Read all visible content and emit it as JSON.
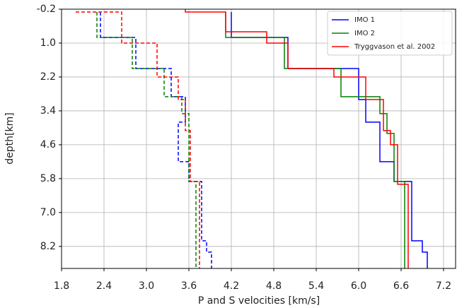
{
  "chart_data": {
    "type": "line",
    "xlabel": "P and S velocities [km/s]",
    "ylabel": "depth[km]",
    "xlim": [
      1.8,
      7.38
    ],
    "ylim": [
      8.98,
      -0.2
    ],
    "xticks": [
      1.8,
      2.4,
      {
        "value": 3.0,
        "label": "3.0"
      },
      3.6,
      4.2,
      4.8,
      5.4,
      {
        "value": 6.0,
        "label": "6.0"
      },
      6.6,
      7.2
    ],
    "yticks": [
      -0.2,
      {
        "value": 1.0,
        "label": "1.0"
      },
      2.2,
      3.4,
      4.6,
      5.8,
      {
        "value": 7.0,
        "label": "7.0"
      },
      8.2
    ],
    "grid": true,
    "legend": "upper right",
    "linestyles": [
      "solid",
      "dashed"
    ],
    "series": [
      {
        "name": "IMO 1",
        "color": "#0000ff",
        "x": [
          4.2,
          4.2,
          5.0,
          5.0,
          6.0,
          6.0,
          6.1,
          6.1,
          6.3,
          6.3,
          6.5,
          6.5,
          6.75,
          6.75,
          6.9,
          6.9,
          6.97,
          6.97,
          null,
          2.35,
          2.35,
          2.85,
          2.85,
          3.35,
          3.35,
          3.55,
          3.55,
          3.45,
          3.45,
          3.6,
          3.6,
          3.78,
          3.78,
          3.85,
          3.85,
          3.92,
          3.92
        ],
        "values": [
          -0.1,
          0.8,
          0.8,
          1.9,
          1.9,
          3.0,
          3.0,
          3.8,
          3.8,
          5.2,
          5.2,
          5.9,
          5.9,
          8.0,
          8.0,
          8.4,
          8.4,
          8.98,
          null,
          -0.1,
          0.8,
          0.8,
          1.9,
          1.9,
          2.9,
          2.9,
          3.8,
          3.8,
          5.2,
          5.2,
          5.9,
          5.9,
          8.0,
          8.0,
          8.4,
          8.4,
          8.98
        ]
      },
      {
        "name": "IMO 2",
        "color": "#008000",
        "x": [
          4.12,
          4.12,
          4.95,
          4.95,
          5.75,
          5.75,
          6.3,
          6.3,
          6.4,
          6.4,
          6.5,
          6.5,
          6.65,
          6.65,
          null,
          2.3,
          2.3,
          2.8,
          2.8,
          3.25,
          3.25,
          3.5,
          3.5,
          3.6,
          3.6,
          3.7,
          3.7
        ],
        "values": [
          -0.1,
          0.8,
          0.8,
          1.9,
          1.9,
          2.9,
          2.9,
          3.5,
          3.5,
          4.2,
          4.2,
          5.9,
          5.9,
          8.98,
          null,
          -0.1,
          0.8,
          0.8,
          1.9,
          1.9,
          2.9,
          2.9,
          3.5,
          3.5,
          5.9,
          5.9,
          8.98
        ]
      },
      {
        "name": "Tryggvason et al. 2002",
        "color": "#ff0000",
        "x": [
          3.55,
          3.55,
          4.12,
          4.12,
          4.7,
          4.7,
          5.0,
          5.0,
          5.65,
          5.65,
          6.1,
          6.1,
          6.35,
          6.35,
          6.45,
          6.45,
          6.55,
          6.55,
          6.7,
          6.7,
          null,
          2.0,
          2.65,
          2.65,
          3.15,
          3.15,
          3.45,
          3.45,
          3.55,
          3.55,
          3.62,
          3.62,
          3.75,
          3.75
        ],
        "values": [
          -0.2,
          -0.1,
          -0.1,
          0.6,
          0.6,
          1.0,
          1.0,
          1.9,
          1.9,
          2.2,
          2.2,
          3.0,
          3.0,
          4.1,
          4.1,
          4.6,
          4.6,
          6.0,
          6.0,
          8.98,
          null,
          -0.1,
          -0.1,
          1.0,
          1.0,
          2.2,
          2.2,
          3.0,
          3.0,
          4.1,
          4.1,
          5.9,
          5.9,
          8.98
        ]
      }
    ]
  }
}
